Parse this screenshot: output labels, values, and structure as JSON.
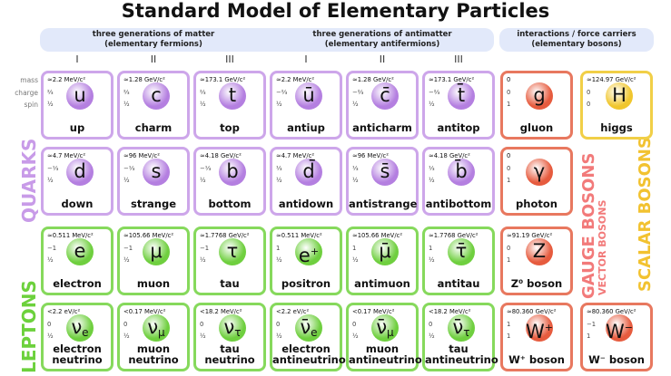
{
  "title": "Standard Model of Elementary Particles",
  "bands": {
    "matter": [
      "three generations of matter",
      "(elementary fermions)"
    ],
    "antimatter": [
      "three generations of antimatter",
      "(elementary antifermions)"
    ],
    "bosons": [
      "interactions / force carriers",
      "(elementary bosons)"
    ]
  },
  "generations": [
    "I",
    "II",
    "III",
    "I",
    "II",
    "III"
  ],
  "row_labels": {
    "mass": "mass",
    "charge": "charge",
    "spin": "spin"
  },
  "side_labels": {
    "quarks": "QUARKS",
    "leptons": "LEPTONS",
    "gauge": "GAUGE BOSONS",
    "vector": "VECTOR BOSONS",
    "scalar": "SCALAR BOSONS"
  },
  "colors": {
    "quark_border": "#cda6ea",
    "quark_ball": "#b47fe0",
    "lepton_border": "#86d95c",
    "lepton_ball": "#6fcf3f",
    "gauge_border": "#e8785f",
    "gauge_ball": "#e65b3e",
    "scalar_border": "#f1cf47",
    "scalar_ball": "#f0c62d"
  },
  "particles": [
    [
      {
        "mass": "≈2.2 MeV/c²",
        "charge": "⅔",
        "spin": "½",
        "symbol": "u",
        "name": "up",
        "type": "quark"
      },
      {
        "mass": "≈1.28 GeV/c²",
        "charge": "⅔",
        "spin": "½",
        "symbol": "c",
        "name": "charm",
        "type": "quark"
      },
      {
        "mass": "≈173.1 GeV/c²",
        "charge": "⅔",
        "spin": "½",
        "symbol": "t",
        "name": "top",
        "type": "quark"
      },
      {
        "mass": "≈2.2 MeV/c²",
        "charge": "−⅔",
        "spin": "½",
        "symbol": "ū",
        "name": "antiup",
        "type": "quark"
      },
      {
        "mass": "≈1.28 GeV/c²",
        "charge": "−⅔",
        "spin": "½",
        "symbol": "c̄",
        "name": "anticharm",
        "type": "quark"
      },
      {
        "mass": "≈173.1 GeV/c²",
        "charge": "−⅔",
        "spin": "½",
        "symbol": "t̄",
        "name": "antitop",
        "type": "quark"
      },
      {
        "mass": "",
        "charge": "0",
        "spin": "1",
        "extra": "0",
        "symbol": "g",
        "name": "gluon",
        "type": "gauge"
      },
      {
        "mass": "≈124.97 GeV/c²",
        "charge": "0",
        "spin": "0",
        "symbol": "H",
        "name": "higgs",
        "type": "scalar"
      }
    ],
    [
      {
        "mass": "≈4.7 MeV/c²",
        "charge": "−⅓",
        "spin": "½",
        "symbol": "d",
        "name": "down",
        "type": "quark"
      },
      {
        "mass": "≈96 MeV/c²",
        "charge": "−⅓",
        "spin": "½",
        "symbol": "s",
        "name": "strange",
        "type": "quark"
      },
      {
        "mass": "≈4.18 GeV/c²",
        "charge": "−⅓",
        "spin": "½",
        "symbol": "b",
        "name": "bottom",
        "type": "quark"
      },
      {
        "mass": "≈4.7 MeV/c²",
        "charge": "⅓",
        "spin": "½",
        "symbol": "d̄",
        "name": "antidown",
        "type": "quark"
      },
      {
        "mass": "≈96 MeV/c²",
        "charge": "⅓",
        "spin": "½",
        "symbol": "s̄",
        "name": "antistrange",
        "type": "quark"
      },
      {
        "mass": "≈4.18 GeV/c²",
        "charge": "⅓",
        "spin": "½",
        "symbol": "b̄",
        "name": "antibottom",
        "type": "quark"
      },
      {
        "mass": "",
        "charge": "0",
        "spin": "1",
        "extra": "0",
        "symbol": "γ",
        "name": "photon",
        "type": "gauge"
      }
    ],
    [
      {
        "mass": "≈0.511 MeV/c²",
        "charge": "−1",
        "spin": "½",
        "symbol": "e",
        "name": "electron",
        "type": "lepton"
      },
      {
        "mass": "≈105.66 MeV/c²",
        "charge": "−1",
        "spin": "½",
        "symbol": "μ",
        "name": "muon",
        "type": "lepton"
      },
      {
        "mass": "≈1.7768 GeV/c²",
        "charge": "−1",
        "spin": "½",
        "symbol": "τ",
        "name": "tau",
        "type": "lepton"
      },
      {
        "mass": "≈0.511 MeV/c²",
        "charge": "1",
        "spin": "½",
        "symbol": "e",
        "sup": "+",
        "name": "positron",
        "type": "lepton"
      },
      {
        "mass": "≈105.66 MeV/c²",
        "charge": "1",
        "spin": "½",
        "symbol": "μ̄",
        "name": "antimuon",
        "type": "lepton"
      },
      {
        "mass": "≈1.7768 GeV/c²",
        "charge": "1",
        "spin": "½",
        "symbol": "τ̄",
        "name": "antitau",
        "type": "lepton"
      },
      {
        "mass": "≈91.19 GeV/c²",
        "charge": "0",
        "spin": "1",
        "symbol": "Z",
        "name": "Z⁰ boson",
        "type": "gauge"
      }
    ],
    [
      {
        "mass": "<2.2 eV/c²",
        "charge": "0",
        "spin": "½",
        "symbol": "ν",
        "sub": "e",
        "name": "electron neutrino",
        "type": "lepton"
      },
      {
        "mass": "<0.17 MeV/c²",
        "charge": "0",
        "spin": "½",
        "symbol": "ν",
        "sub": "μ",
        "name": "muon neutrino",
        "type": "lepton"
      },
      {
        "mass": "<18.2 MeV/c²",
        "charge": "0",
        "spin": "½",
        "symbol": "ν",
        "sub": "τ",
        "name": "tau neutrino",
        "type": "lepton"
      },
      {
        "mass": "<2.2 eV/c²",
        "charge": "0",
        "spin": "½",
        "symbol": "ν̄",
        "sub": "e",
        "name": "electron antineutrino",
        "type": "lepton"
      },
      {
        "mass": "<0.17 MeV/c²",
        "charge": "0",
        "spin": "½",
        "symbol": "ν̄",
        "sub": "μ",
        "name": "muon antineutrino",
        "type": "lepton"
      },
      {
        "mass": "<18.2 MeV/c²",
        "charge": "0",
        "spin": "½",
        "symbol": "ν̄",
        "sub": "τ",
        "name": "tau antineutrino",
        "type": "lepton"
      },
      {
        "mass": "≈80.360 GeV/c²",
        "charge": "1",
        "spin": "1",
        "symbol": "W",
        "sup": "+",
        "name": "W⁺ boson",
        "type": "gauge"
      },
      {
        "mass": "≈80.360 GeV/c²",
        "charge": "−1",
        "spin": "1",
        "symbol": "W",
        "sup": "−",
        "name": "W⁻ boson",
        "type": "gauge"
      }
    ]
  ]
}
